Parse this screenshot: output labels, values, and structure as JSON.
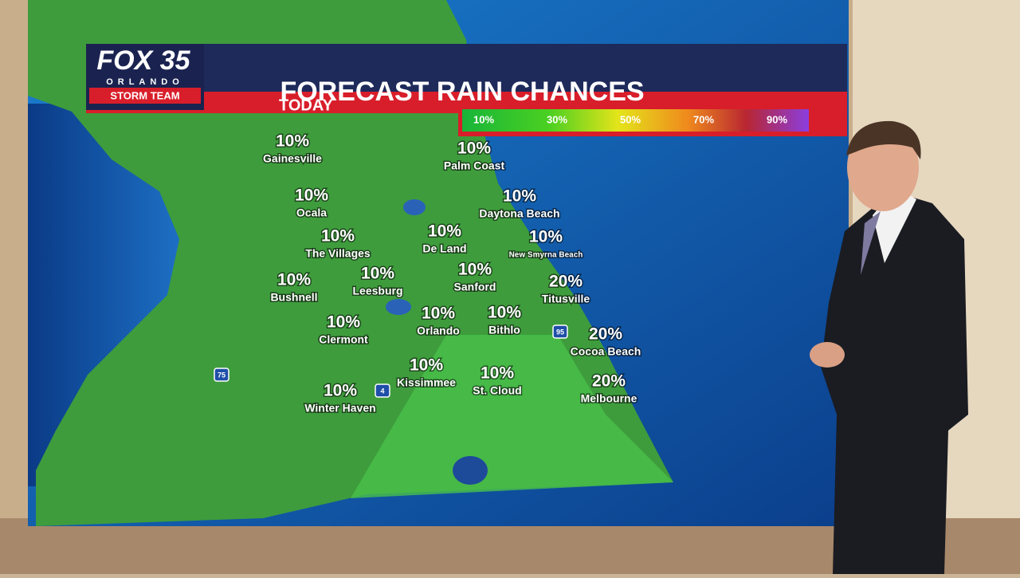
{
  "logo": {
    "brand": "FOX 35",
    "city": "ORLANDO",
    "team": "STORM TEAM"
  },
  "title": "FORECAST RAIN CHANCES",
  "subtitle": "TODAY",
  "legend": [
    "10%",
    "30%",
    "50%",
    "70%",
    "90%"
  ],
  "highways": [
    "75",
    "4",
    "95"
  ],
  "cities": [
    {
      "name": "Gainesville",
      "chance": "10%"
    },
    {
      "name": "Ocala",
      "chance": "10%"
    },
    {
      "name": "The Villages",
      "chance": "10%"
    },
    {
      "name": "Bushnell",
      "chance": "10%"
    },
    {
      "name": "Leesburg",
      "chance": "10%"
    },
    {
      "name": "Clermont",
      "chance": "10%"
    },
    {
      "name": "Winter Haven",
      "chance": "10%"
    },
    {
      "name": "Kissimmee",
      "chance": "10%"
    },
    {
      "name": "Orlando",
      "chance": "10%"
    },
    {
      "name": "De Land",
      "chance": "10%"
    },
    {
      "name": "Sanford",
      "chance": "10%"
    },
    {
      "name": "Palm Coast",
      "chance": "10%"
    },
    {
      "name": "Daytona Beach",
      "chance": "10%"
    },
    {
      "name": "New Smyrna Beach",
      "chance": "10%"
    },
    {
      "name": "Titusville",
      "chance": "20%"
    },
    {
      "name": "Bithlo",
      "chance": "10%"
    },
    {
      "name": "St. Cloud",
      "chance": "10%"
    },
    {
      "name": "Cocoa Beach",
      "chance": "20%"
    },
    {
      "name": "Melbourne",
      "chance": "20%"
    }
  ]
}
